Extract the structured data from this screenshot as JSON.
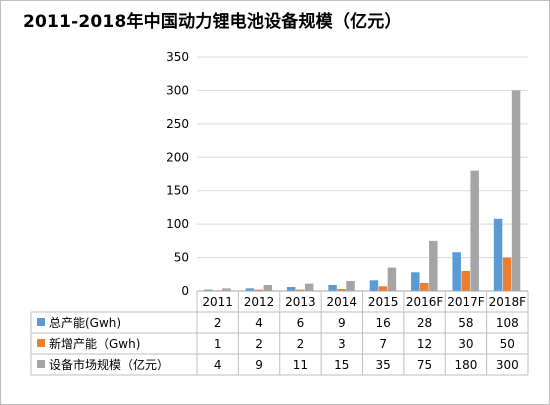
{
  "chart_data": {
    "type": "bar",
    "title": "2011-2018年中国动力锂电池设备规模（亿元）",
    "categories": [
      "2011",
      "2012",
      "2013",
      "2014",
      "2015",
      "2016F",
      "2017F",
      "2018F"
    ],
    "series": [
      {
        "name": "总产能(Gwh)",
        "color": "#5b9bd5",
        "values": [
          2,
          4,
          6,
          9,
          16,
          28,
          58,
          108
        ]
      },
      {
        "name": "新增产能（Gwh)",
        "color": "#ed7d31",
        "values": [
          1,
          2,
          2,
          3,
          7,
          12,
          30,
          50
        ]
      },
      {
        "name": "设备市场规模（亿元）",
        "color": "#a5a5a5",
        "values": [
          4,
          9,
          11,
          15,
          35,
          75,
          180,
          300
        ]
      }
    ],
    "ylim": [
      0,
      350
    ],
    "yticks": [
      0,
      50,
      100,
      150,
      200,
      250,
      300,
      350
    ],
    "grid": true,
    "data_table": true
  }
}
